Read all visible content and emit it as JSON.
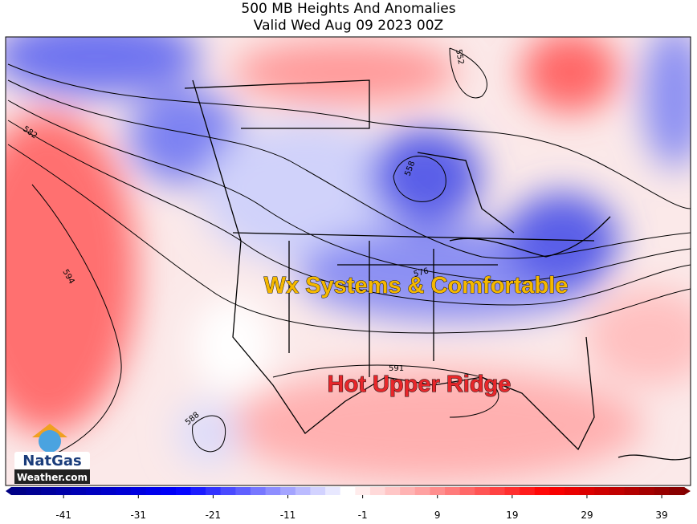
{
  "header": {
    "title": "500 MB Heights And Anomalies",
    "subtitle": "Valid Wed Aug 09 2023 00Z"
  },
  "annotations": {
    "north": "Wx Systems & Comfortable",
    "south": "Hot Upper Ridge"
  },
  "contour_labels": [
    "552",
    "558",
    "582",
    "594",
    "576",
    "591",
    "588"
  ],
  "logo": {
    "line1": "NatGas",
    "line2": "Weather.com"
  },
  "colorbar": {
    "lim": [
      -48,
      42
    ],
    "ticks": [
      -41,
      -31,
      -21,
      -11,
      -1,
      9,
      19,
      29,
      39
    ]
  }
}
